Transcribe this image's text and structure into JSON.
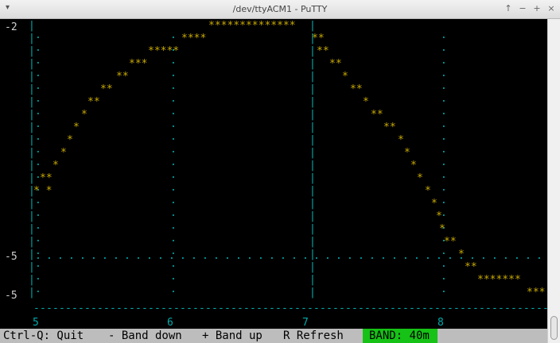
{
  "window": {
    "title": "/dev/ttyACM1 - PuTTY",
    "menu_icon": "chevron-down-icon",
    "controls": [
      "↑",
      "−",
      "+",
      "×"
    ]
  },
  "plot": {
    "y_labels": [
      "-2",
      "-5",
      "-5"
    ],
    "x_labels": [
      "5",
      "6",
      "7",
      "8"
    ]
  },
  "status_bar": {
    "quit": "Ctrl-Q: Quit",
    "band_down": "- Band down",
    "band_up": "+ Band up",
    "refresh": "R Refresh",
    "band": "BAND: 40m"
  },
  "colors": {
    "axis": "#00aaaa",
    "curve": "#c8aa00",
    "band_bg": "#16c216",
    "status_bg": "#bdbdbd"
  }
}
